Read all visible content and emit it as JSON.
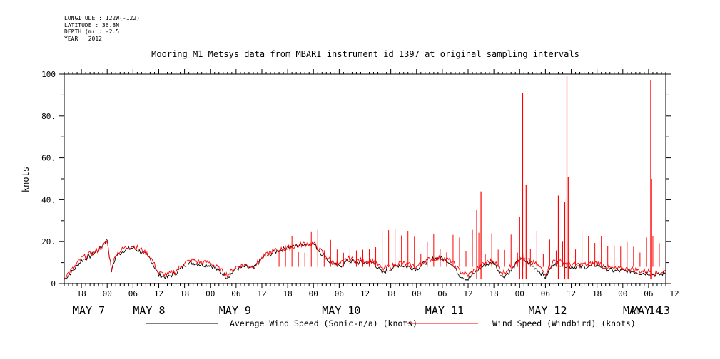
{
  "header": {
    "longitude": "LONGITUDE : 122W(-122)",
    "latitude": "LATITUDE : 36.8N",
    "depth": "DEPTH (m) : -2.5",
    "year": "YEAR : 2012"
  },
  "chart_data": {
    "type": "line",
    "title": "Mooring M1 Metsys data from MBARI instrument id 1397 at original sampling intervals",
    "xlabel": "",
    "ylabel": "knots",
    "ylim": [
      0,
      100
    ],
    "xlim_hours": [
      -10,
      130
    ],
    "y_ticks": [
      "0",
      "20.",
      "40.",
      "60.",
      "80.",
      "100"
    ],
    "x_hour_ticks": [
      {
        "h": -6,
        "label": "18"
      },
      {
        "h": 0,
        "label": "00"
      },
      {
        "h": 6,
        "label": "06"
      },
      {
        "h": 12,
        "label": "12"
      },
      {
        "h": 18,
        "label": "18"
      },
      {
        "h": 24,
        "label": "00"
      },
      {
        "h": 30,
        "label": "06"
      },
      {
        "h": 36,
        "label": "12"
      },
      {
        "h": 42,
        "label": "18"
      },
      {
        "h": 48,
        "label": "00"
      },
      {
        "h": 54,
        "label": "06"
      },
      {
        "h": 60,
        "label": "12"
      },
      {
        "h": 66,
        "label": "18"
      },
      {
        "h": 72,
        "label": "00"
      },
      {
        "h": 78,
        "label": "06"
      },
      {
        "h": 84,
        "label": "12"
      },
      {
        "h": 90,
        "label": "18"
      },
      {
        "h": 96,
        "label": "00"
      },
      {
        "h": 102,
        "label": "06"
      },
      {
        "h": 108,
        "label": "12"
      },
      {
        "h": 114,
        "label": "18"
      },
      {
        "h": 120,
        "label": "00"
      },
      {
        "h": 126,
        "label": "06"
      },
      {
        "h": 132,
        "label": "12"
      }
    ],
    "day_labels": [
      "MAY  7",
      "MAY  8",
      "MAY  9",
      "MAY 10",
      "MAY 11",
      "MAY 12",
      "MAY 13",
      "MAY 14"
    ],
    "day_label_hours": [
      -8,
      6,
      26,
      50,
      74,
      98,
      122,
      146
    ],
    "series": [
      {
        "name": "Average Wind Speed (Sonic-n/a) (knots)",
        "color": "#000000",
        "x_hours": [
          -10,
          -8,
          -6,
          -4,
          -2,
          0,
          1,
          2,
          4,
          6,
          8,
          10,
          12,
          14,
          16,
          18,
          20,
          22,
          24,
          26,
          28,
          30,
          32,
          34,
          36,
          38,
          40,
          42,
          44,
          46,
          48,
          50,
          52,
          54,
          56,
          58,
          60,
          62,
          64,
          66,
          68,
          70,
          72,
          74,
          76,
          78,
          80,
          82,
          84,
          86,
          88,
          90,
          92,
          94,
          96,
          98,
          100,
          102,
          104,
          106,
          108,
          110,
          112,
          114,
          116,
          118,
          120,
          122,
          124,
          126,
          128,
          130
        ],
        "values": [
          2,
          6,
          11,
          13,
          16,
          21,
          6,
          13,
          16,
          17,
          15,
          12,
          4,
          3,
          5,
          9,
          10,
          9,
          9,
          6,
          3,
          7,
          8,
          7,
          12,
          14,
          16,
          17,
          18,
          19,
          19,
          14,
          10,
          8,
          11,
          10,
          10,
          10,
          5,
          7,
          9,
          8,
          7,
          10,
          12,
          12,
          10,
          4,
          2,
          6,
          9,
          10,
          3,
          6,
          12,
          10,
          7,
          3,
          10,
          9,
          8,
          8,
          8,
          9,
          7,
          6,
          6,
          6,
          5,
          5,
          4,
          5
        ]
      },
      {
        "name": "Wind Speed (Windbird) (knots)",
        "color": "#ff0000",
        "x_hours": [
          -10,
          -8,
          -6,
          -4,
          -2,
          0,
          1,
          2,
          4,
          6,
          8,
          10,
          12,
          14,
          16,
          18,
          20,
          22,
          24,
          26,
          28,
          30,
          32,
          34,
          36,
          38,
          40,
          42,
          44,
          46,
          48,
          50,
          52,
          54,
          56,
          58,
          60,
          62,
          64,
          66,
          68,
          70,
          72,
          74,
          76,
          78,
          80,
          82,
          84,
          86,
          88,
          90,
          92,
          94,
          96,
          98,
          100,
          102,
          104,
          106,
          108,
          110,
          112,
          114,
          116,
          118,
          120,
          122,
          124,
          126,
          128,
          130
        ],
        "values": [
          3,
          7,
          12,
          14,
          16,
          20,
          7,
          14,
          17,
          18,
          16,
          13,
          5,
          4,
          6,
          10,
          11,
          10,
          10,
          7,
          4,
          8,
          9,
          8,
          12,
          15,
          16,
          17,
          18,
          19,
          19,
          15,
          11,
          9,
          12,
          11,
          11,
          11,
          7,
          8,
          10,
          9,
          8,
          11,
          12,
          12,
          11,
          6,
          4,
          7,
          10,
          11,
          5,
          8,
          12,
          11,
          9,
          5,
          11,
          10,
          9,
          9,
          9,
          10,
          8,
          7,
          7,
          7,
          6,
          6,
          5,
          6
        ],
        "spikes": [
          {
            "x": 86,
            "y": 35
          },
          {
            "x": 87,
            "y": 44
          },
          {
            "x": 96,
            "y": 32
          },
          {
            "x": 96.7,
            "y": 91
          },
          {
            "x": 97.5,
            "y": 47
          },
          {
            "x": 105,
            "y": 42
          },
          {
            "x": 106.5,
            "y": 39
          },
          {
            "x": 107,
            "y": 99
          },
          {
            "x": 107.3,
            "y": 51
          },
          {
            "x": 126.5,
            "y": 97
          },
          {
            "x": 126.7,
            "y": 50
          }
        ]
      }
    ],
    "legend_placement": "bottom",
    "grid": false
  }
}
